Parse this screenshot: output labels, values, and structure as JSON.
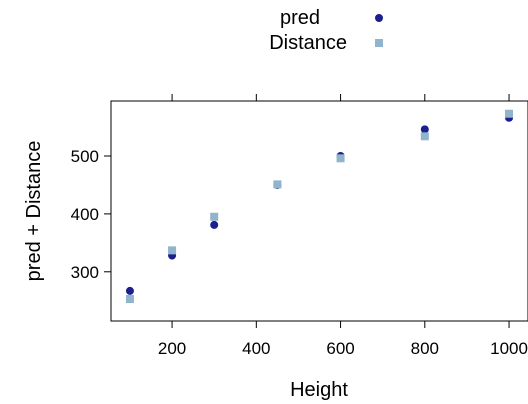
{
  "chart_data": {
    "type": "scatter",
    "xlabel": "Height",
    "ylabel": "pred + Distance",
    "xlim": [
      55,
      1045
    ],
    "ylim": [
      215,
      595
    ],
    "xticks": [
      200,
      400,
      600,
      800,
      1000
    ],
    "yticks": [
      300,
      400,
      500
    ],
    "legend_position": "top",
    "grid": false,
    "series": [
      {
        "name": "pred",
        "marker": "circle",
        "color": "#1c1f8f",
        "points": [
          [
            100,
            267
          ],
          [
            200,
            328
          ],
          [
            300,
            381
          ],
          [
            450,
            450
          ],
          [
            600,
            500
          ],
          [
            800,
            546
          ],
          [
            1000,
            566
          ]
        ]
      },
      {
        "name": "Distance",
        "marker": "square",
        "color": "#8fb4cc",
        "points": [
          [
            100,
            253
          ],
          [
            200,
            337
          ],
          [
            300,
            395
          ],
          [
            450,
            451
          ],
          [
            600,
            496
          ],
          [
            800,
            534
          ],
          [
            1000,
            573
          ]
        ]
      }
    ]
  }
}
